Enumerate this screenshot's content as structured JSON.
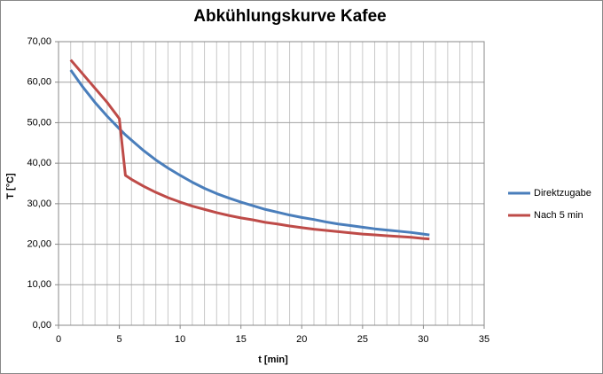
{
  "chart_data": {
    "type": "line",
    "title": "Abkühlungskurve Kafee",
    "x_label": "t [min]",
    "y_label": "T [°C]",
    "x": [
      1,
      2,
      3,
      4,
      5,
      5.5,
      6,
      7,
      8,
      9,
      10,
      11,
      12,
      13,
      14,
      15,
      16,
      17,
      18,
      19,
      20,
      21,
      22,
      23,
      24,
      25,
      26,
      27,
      28,
      29,
      30,
      30.5
    ],
    "series": [
      {
        "name": "Direktzugabe",
        "color": "#4a7ebb",
        "values": [
          63.0,
          58.8,
          55.0,
          51.6,
          48.5,
          47.0,
          45.7,
          43.1,
          40.8,
          38.8,
          37.0,
          35.3,
          33.8,
          32.5,
          31.4,
          30.4,
          29.5,
          28.6,
          27.9,
          27.2,
          26.6,
          26.1,
          25.5,
          25.0,
          24.6,
          24.2,
          23.8,
          23.5,
          23.2,
          22.9,
          22.5,
          22.3
        ]
      },
      {
        "name": "Nach 5 min",
        "color": "#be4b48",
        "values": [
          65.5,
          62.0,
          58.5,
          55.0,
          51.0,
          37.0,
          36.0,
          34.3,
          32.8,
          31.5,
          30.4,
          29.4,
          28.6,
          27.8,
          27.1,
          26.5,
          26.0,
          25.4,
          25.0,
          24.5,
          24.1,
          23.7,
          23.4,
          23.1,
          22.8,
          22.5,
          22.3,
          22.1,
          21.9,
          21.7,
          21.4,
          21.3
        ]
      }
    ],
    "xlim": [
      0,
      35
    ],
    "xticks": [
      0,
      5,
      10,
      15,
      20,
      25,
      30,
      35
    ],
    "ylim": [
      0,
      70
    ],
    "yticks": [
      {
        "value": 0,
        "label": "0,00"
      },
      {
        "value": 10,
        "label": "10,00"
      },
      {
        "value": 20,
        "label": "20,00"
      },
      {
        "value": 30,
        "label": "30,00"
      },
      {
        "value": 40,
        "label": "40,00"
      },
      {
        "value": 50,
        "label": "50,00"
      },
      {
        "value": 60,
        "label": "60,00"
      },
      {
        "value": 70,
        "label": "70,00"
      }
    ],
    "x_minor_grid": 1,
    "grid": true,
    "legend": "right"
  }
}
